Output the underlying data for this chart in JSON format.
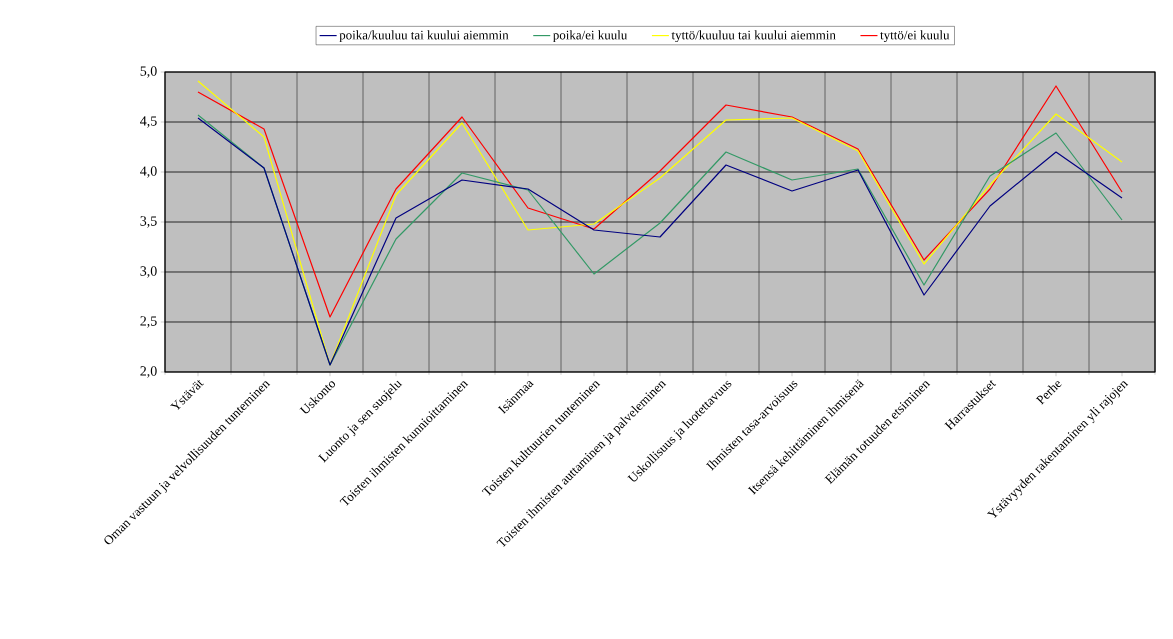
{
  "chart_data": {
    "type": "line",
    "categories": [
      "Ystävät",
      "Oman vastuun ja velvollisuuden tunteminen",
      "Uskonto",
      "Luonto ja sen suojelu",
      "Toisten ihmisten kunnioittaminen",
      "Isänmaa",
      "Toisten kulttuurien tunteminen",
      "Toisten ihmisten auttaminen ja palveleminen",
      "Uskollisuus ja luotettavuus",
      "Ihmisten tasa-arvoisuus",
      "Itsensä kehittäminen ihmisenä",
      "Elämän totuuden etsiminen",
      "Harrastukset",
      "Perhe",
      "Ystävyyden rakentaminen yli rajojen"
    ],
    "series": [
      {
        "name": "poika/kuuluu tai kuului aiemmin",
        "color": "#000080",
        "values": [
          4.54,
          4.04,
          2.07,
          3.54,
          3.92,
          3.83,
          3.42,
          3.35,
          4.07,
          3.81,
          4.02,
          2.77,
          3.66,
          4.2,
          3.74
        ]
      },
      {
        "name": "poika/ei kuulu",
        "color": "#339966",
        "values": [
          4.57,
          4.04,
          2.07,
          3.33,
          3.99,
          3.82,
          2.98,
          3.49,
          4.2,
          3.92,
          4.03,
          2.87,
          3.96,
          4.39,
          3.52
        ]
      },
      {
        "name": "tyttö/kuuluu tai kuului aiemmin",
        "color": "#ffff00",
        "values": [
          4.91,
          4.35,
          2.07,
          3.77,
          4.49,
          3.42,
          3.48,
          3.94,
          4.52,
          4.54,
          4.21,
          3.08,
          3.87,
          4.58,
          4.1
        ]
      },
      {
        "name": "tyttö/ei kuulu",
        "color": "#ff0000",
        "values": [
          4.8,
          4.43,
          2.55,
          3.83,
          4.55,
          3.64,
          3.43,
          4.01,
          4.67,
          4.55,
          4.23,
          3.12,
          3.83,
          4.86,
          3.8
        ]
      }
    ],
    "ylim": [
      2,
      5
    ],
    "yticks": [
      {
        "value": 2,
        "label": "2,0"
      },
      {
        "value": 2.5,
        "label": "2,5"
      },
      {
        "value": 3,
        "label": "3,0"
      },
      {
        "value": 3.5,
        "label": "3,5"
      },
      {
        "value": 4,
        "label": "4,0"
      },
      {
        "value": 4.5,
        "label": "4,5"
      },
      {
        "value": 5,
        "label": "5,0"
      }
    ],
    "grid": true,
    "legend": "top",
    "marker": "none",
    "line_style": "solid"
  }
}
